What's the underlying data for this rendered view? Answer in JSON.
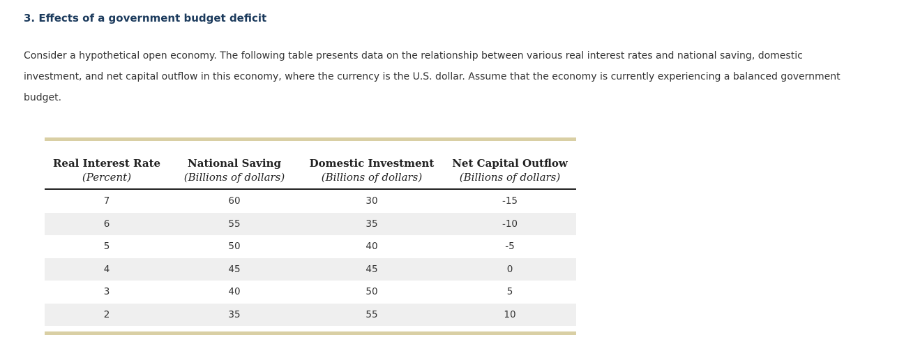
{
  "section": {
    "title": "3. Effects of a government budget deficit",
    "intro": "Consider a hypothetical open economy. The following table presents data on the relationship between various real interest rates and national saving, domestic investment, and net capital outflow in this economy, where the currency is the U.S. dollar. Assume that the economy is currently experiencing a balanced government budget."
  },
  "table": {
    "headers": [
      {
        "label": "Real Interest Rate",
        "unit": "(Percent)"
      },
      {
        "label": "National Saving",
        "unit": "(Billions of dollars)"
      },
      {
        "label": "Domestic Investment",
        "unit": "(Billions of dollars)"
      },
      {
        "label": "Net Capital Outflow",
        "unit": "(Billions of dollars)"
      }
    ],
    "rows": [
      [
        "7",
        "60",
        "30",
        "-15"
      ],
      [
        "6",
        "55",
        "35",
        "-10"
      ],
      [
        "5",
        "50",
        "40",
        "-5"
      ],
      [
        "4",
        "45",
        "45",
        "0"
      ],
      [
        "3",
        "40",
        "50",
        "5"
      ],
      [
        "2",
        "35",
        "55",
        "10"
      ]
    ],
    "colors": {
      "border_bar": "#d9cfa4",
      "stripe": "#efefef",
      "heading": "#1b3a5c"
    }
  }
}
